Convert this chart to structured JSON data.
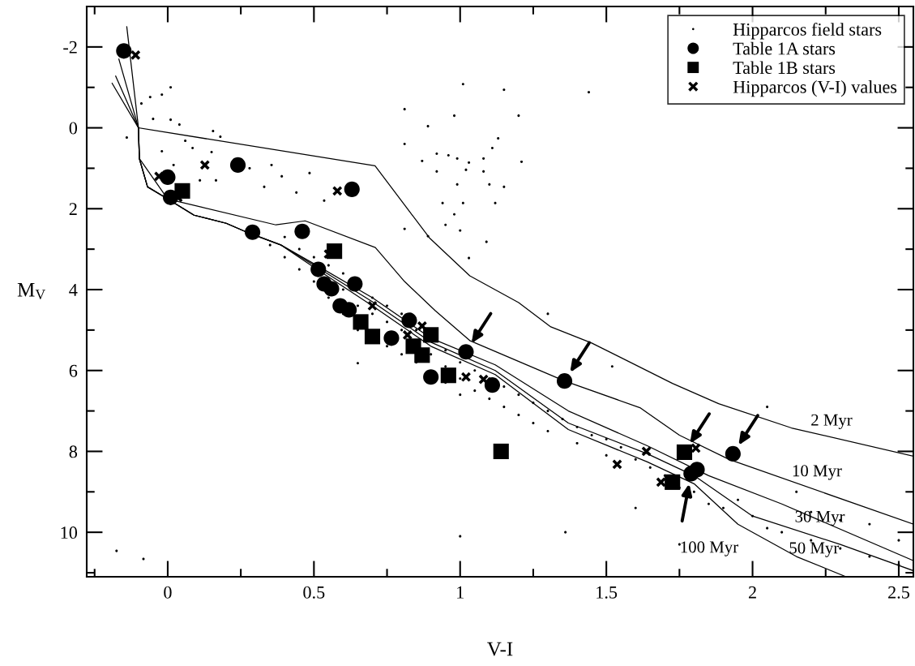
{
  "chart_data": {
    "type": "scatter",
    "xlabel": "V-I",
    "ylabel": "M$_{V}$",
    "xlim": [
      -0.277,
      2.55
    ],
    "ylim": [
      11.1,
      -3.0
    ],
    "xticks": [
      {
        "value": -0.25,
        "label": null
      },
      0,
      {
        "value": 0.25,
        "label": null
      },
      0.5,
      {
        "value": 0.75,
        "label": null
      },
      1,
      {
        "value": 1.25,
        "label": null
      },
      1.5,
      {
        "value": 1.75,
        "label": null
      },
      2,
      {
        "value": 2.25,
        "label": null
      },
      2.5
    ],
    "yticks": [
      -2,
      {
        "value": -1,
        "label": null
      },
      0,
      {
        "value": 1,
        "label": null
      },
      2,
      {
        "value": 3,
        "label": null
      },
      4,
      {
        "value": 5,
        "label": null
      },
      6,
      {
        "value": 7,
        "label": null
      },
      8,
      {
        "value": 9,
        "label": null
      },
      10,
      {
        "value": 11,
        "label": null
      }
    ],
    "legend": "top right",
    "grid": false,
    "series": [
      {
        "name": "Hipparcos field stars",
        "marker": "circle",
        "color": "#000000",
        "x": [
          0.01,
          -0.02,
          -0.06,
          -0.09,
          -0.05,
          0.01,
          0.04,
          0.155,
          0.18,
          -0.14,
          0.06,
          -0.02,
          0.085,
          0.15,
          0.02,
          0.28,
          0.355,
          0.39,
          0.485,
          0.33,
          0.44,
          0.535,
          0.165,
          0.11,
          1.01,
          1.15,
          1.44,
          0.81,
          0.98,
          1.2,
          0.89,
          0.81,
          1.13,
          0.87,
          0.92,
          0.96,
          0.99,
          1.03,
          1.08,
          1.11,
          1.21,
          0.92,
          1.02,
          1.08,
          0.99,
          1.1,
          1.15,
          0.94,
          1.01,
          1.12,
          0.98,
          0.95,
          1.0,
          1.09,
          0.89,
          1.03,
          0.81,
          0.35,
          0.4,
          0.4,
          0.45,
          0.45,
          0.5,
          0.5,
          0.55,
          0.55,
          0.6,
          0.6,
          0.6,
          0.65,
          0.65,
          0.7,
          0.7,
          0.75,
          0.75,
          0.75,
          0.8,
          0.8,
          0.8,
          0.85,
          0.85,
          0.9,
          0.95,
          0.95,
          0.95,
          1.0,
          1.0,
          1.0,
          1.05,
          1.05,
          1.1,
          1.1,
          1.15,
          1.15,
          1.2,
          1.2,
          1.25,
          1.25,
          1.3,
          1.3,
          1.35,
          1.4,
          1.4,
          1.45,
          1.5,
          1.5,
          1.55,
          1.6,
          1.65,
          1.7,
          1.75,
          1.8,
          1.85,
          1.9,
          1.95,
          2.0,
          2.05,
          2.1,
          2.2,
          2.3,
          2.4,
          2.5,
          2.5,
          2.4,
          2.3,
          2.2,
          2.15,
          -0.175,
          -0.083,
          0.65,
          1.6,
          1.36,
          1.75,
          2.05,
          1.3,
          1.52,
          1.0
        ],
        "values": [
          -1.0,
          -0.82,
          -0.76,
          -0.6,
          -0.22,
          -0.2,
          -0.08,
          0.08,
          0.22,
          0.24,
          0.32,
          0.58,
          0.5,
          0.6,
          0.92,
          1.0,
          0.92,
          1.2,
          1.12,
          1.46,
          1.6,
          1.8,
          1.3,
          1.3,
          -1.08,
          -0.94,
          -0.88,
          -0.46,
          -0.3,
          -0.3,
          -0.04,
          0.4,
          0.26,
          0.82,
          0.64,
          0.68,
          0.76,
          0.86,
          0.76,
          0.5,
          0.84,
          1.08,
          1.04,
          1.08,
          1.4,
          1.4,
          1.46,
          1.86,
          1.86,
          1.86,
          2.14,
          2.4,
          2.54,
          2.82,
          2.68,
          3.22,
          2.5,
          2.9,
          2.7,
          3.2,
          3.0,
          3.5,
          3.2,
          3.8,
          3.4,
          4.2,
          3.6,
          4.0,
          4.6,
          4.4,
          5.0,
          4.2,
          4.6,
          4.4,
          4.8,
          5.4,
          4.6,
          5.0,
          5.6,
          5.0,
          5.8,
          5.6,
          5.5,
          5.9,
          6.3,
          5.8,
          6.2,
          6.6,
          6.0,
          6.5,
          6.2,
          6.7,
          6.4,
          6.9,
          6.6,
          7.1,
          6.8,
          7.3,
          7.0,
          7.5,
          7.2,
          7.4,
          7.8,
          7.6,
          7.7,
          8.1,
          7.9,
          8.2,
          8.4,
          8.6,
          8.9,
          9.0,
          9.3,
          9.4,
          9.2,
          9.6,
          9.9,
          10.0,
          10.2,
          10.4,
          10.6,
          10.8,
          10.2,
          9.8,
          9.7,
          9.5,
          9.0,
          10.46,
          10.66,
          5.82,
          9.4,
          10.0,
          10.3,
          6.9,
          4.6,
          5.9,
          10.1
        ]
      },
      {
        "name": "Table 1A stars",
        "marker": "circle",
        "color": "#000000",
        "x": [
          -0.15,
          0.0,
          0.01,
          0.24,
          0.29,
          0.46,
          0.63,
          0.515,
          0.535,
          0.56,
          0.59,
          0.62,
          0.64,
          0.765,
          0.826,
          1.02,
          0.9,
          1.11,
          1.357,
          1.933,
          1.79,
          1.81
        ],
        "values": [
          -1.9,
          1.22,
          1.72,
          0.92,
          2.58,
          2.56,
          1.52,
          3.5,
          3.86,
          3.98,
          4.4,
          4.5,
          3.86,
          5.2,
          4.76,
          5.54,
          6.16,
          6.36,
          6.26,
          8.06,
          8.55,
          8.45
        ]
      },
      {
        "name": "Table 1B stars",
        "marker": "square",
        "color": "#000000",
        "x": [
          0.05,
          0.57,
          0.66,
          0.7,
          0.84,
          0.87,
          0.9,
          0.96,
          1.14,
          1.767,
          1.726
        ],
        "values": [
          1.56,
          3.05,
          4.8,
          5.16,
          5.4,
          5.62,
          5.12,
          6.12,
          8.0,
          8.02,
          8.76
        ]
      },
      {
        "name": "Hipparcos (V-I) values",
        "marker": "cross",
        "color": "#000000",
        "x": [
          -0.11,
          -0.03,
          0.127,
          0.58,
          0.035,
          0.55,
          1.02,
          1.08,
          0.87,
          0.7,
          0.82,
          1.637,
          1.537,
          1.806,
          1.687
        ],
        "values": [
          -1.8,
          1.2,
          0.92,
          1.56,
          1.72,
          3.12,
          6.16,
          6.22,
          4.9,
          4.4,
          5.12,
          8.0,
          8.32,
          7.92,
          8.76
        ]
      },
      {
        "type": "line",
        "name": "2 Myr",
        "color": "#000000",
        "x": [
          -0.1,
          0.709,
          0.895,
          1.033,
          1.2,
          1.31,
          1.45,
          1.726,
          1.884,
          2.133,
          2.55
        ],
        "values": [
          0.0,
          0.94,
          2.72,
          3.66,
          4.32,
          4.92,
          5.32,
          6.32,
          6.82,
          7.42,
          8.12
        ]
      },
      {
        "type": "line",
        "name": "10 Myr",
        "color": "#000000",
        "x": [
          -0.14,
          -0.1,
          -0.097,
          0.0,
          0.37,
          0.47,
          0.71,
          0.81,
          0.915,
          1.033,
          1.357,
          1.615,
          1.75,
          1.92,
          2.55
        ],
        "values": [
          -2.5,
          0.0,
          0.76,
          1.76,
          2.4,
          2.3,
          2.96,
          3.8,
          4.52,
          5.26,
          6.26,
          6.92,
          7.6,
          8.2,
          9.8
        ]
      },
      {
        "type": "line",
        "name": "30 Myr",
        "color": "#000000",
        "x": [
          -0.167,
          -0.1,
          -0.097,
          -0.069,
          0.0,
          0.09,
          0.2,
          0.277,
          0.388,
          0.5,
          0.7,
          0.9,
          1.12,
          1.37,
          1.64,
          1.85,
          2.1,
          2.55
        ],
        "values": [
          -1.7,
          0.0,
          0.76,
          1.46,
          1.76,
          2.16,
          2.36,
          2.6,
          2.9,
          3.36,
          4.2,
          5.2,
          5.86,
          7.0,
          7.86,
          8.6,
          9.3,
          10.7
        ]
      },
      {
        "type": "line",
        "name": "50 Myr",
        "color": "#000000",
        "x": [
          -0.178,
          -0.1,
          -0.097,
          -0.069,
          0.0,
          0.09,
          0.2,
          0.277,
          0.388,
          0.5,
          0.7,
          0.9,
          1.12,
          1.37,
          1.64,
          1.8,
          2.0,
          2.3,
          2.55
        ],
        "values": [
          -1.28,
          0.0,
          0.76,
          1.46,
          1.76,
          2.16,
          2.36,
          2.6,
          2.9,
          3.4,
          4.3,
          5.3,
          6.0,
          7.3,
          8.06,
          8.6,
          9.6,
          10.3,
          10.95
        ]
      },
      {
        "type": "line",
        "name": "100 Myr",
        "color": "#000000",
        "x": [
          -0.19,
          -0.1,
          -0.097,
          -0.069,
          0.0,
          0.09,
          0.2,
          0.277,
          0.388,
          0.5,
          0.7,
          0.9,
          1.12,
          1.37,
          1.64,
          1.8,
          1.95,
          2.15,
          2.32
        ],
        "values": [
          -1.1,
          0.0,
          0.76,
          1.46,
          1.76,
          2.16,
          2.36,
          2.6,
          2.9,
          3.45,
          4.4,
          5.4,
          6.1,
          7.46,
          8.26,
          8.8,
          9.8,
          10.6,
          11.1
        ]
      }
    ]
  }
}
